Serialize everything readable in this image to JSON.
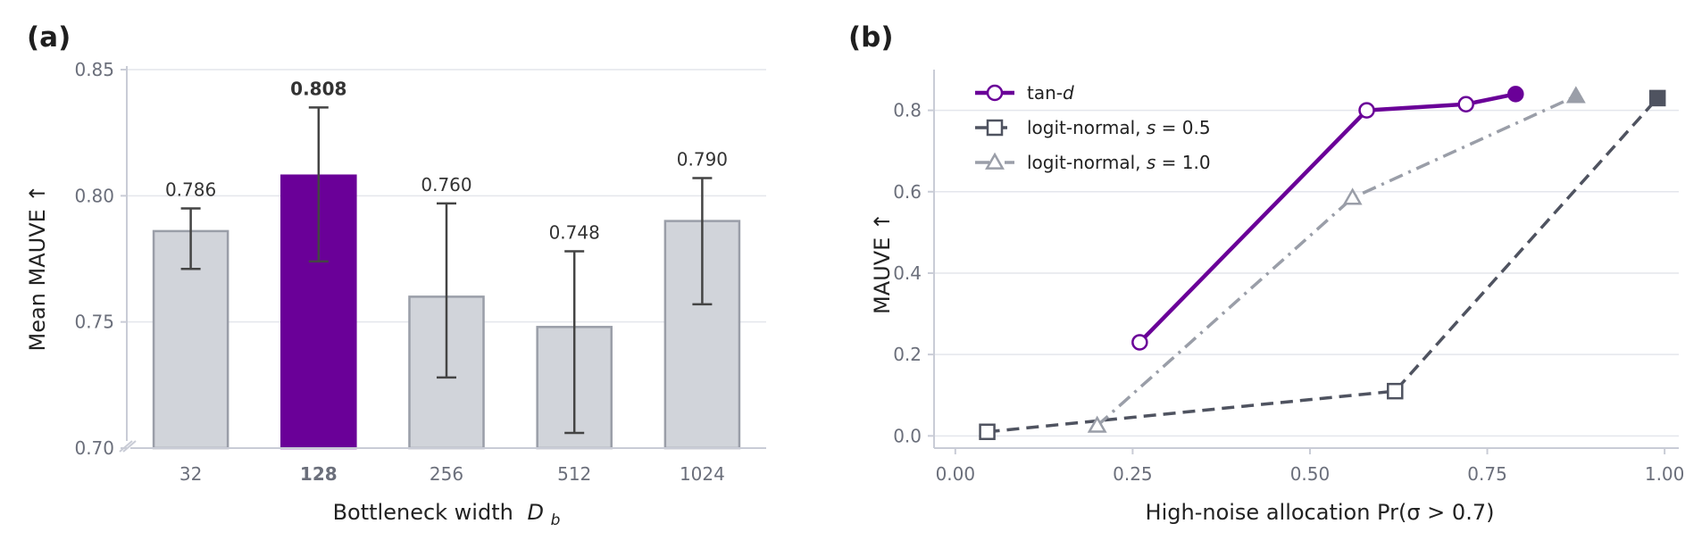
{
  "chart_data": [
    {
      "type": "bar",
      "panel_label": "(a)",
      "xlabel": "Bottleneck width",
      "xlabel_symbol": "D",
      "xlabel_subscript": "b",
      "ylabel": "Mean MAUVE  ↑",
      "ylim": [
        0.7,
        0.85
      ],
      "yticks": [
        "0.70",
        "0.75",
        "0.80",
        "0.85"
      ],
      "ytick_values": [
        0.7,
        0.75,
        0.8,
        0.85
      ],
      "categories": [
        "32",
        "128",
        "256",
        "512",
        "1024"
      ],
      "values": [
        0.786,
        0.808,
        0.76,
        0.748,
        0.79
      ],
      "value_labels": [
        "0.786",
        "0.808",
        "0.760",
        "0.748",
        "0.790"
      ],
      "error_low": [
        0.771,
        0.774,
        0.728,
        0.706,
        0.757
      ],
      "error_high": [
        0.795,
        0.835,
        0.797,
        0.778,
        0.807
      ],
      "highlight_index": 1,
      "colors": {
        "bar": "#d1d4da",
        "bar_edge": "#9a9ea8",
        "highlight": "#6a0098",
        "error": "#444444"
      },
      "axis_break": true,
      "grid": true
    },
    {
      "type": "line",
      "panel_label": "(b)",
      "xlabel": "High-noise allocation  Pr(σ > 0.7)",
      "ylabel": "MAUVE  ↑",
      "xlim": [
        -0.03,
        1.02
      ],
      "ylim": [
        -0.03,
        0.9
      ],
      "xticks": [
        "0.00",
        "0.25",
        "0.50",
        "0.75",
        "1.00"
      ],
      "xtick_values": [
        0.0,
        0.25,
        0.5,
        0.75,
        1.0
      ],
      "yticks": [
        "0.0",
        "0.2",
        "0.4",
        "0.6",
        "0.8"
      ],
      "ytick_values": [
        0.0,
        0.2,
        0.4,
        0.6,
        0.8
      ],
      "grid": true,
      "legend_position": "top-left",
      "series": [
        {
          "name": "tan-",
          "name_italic": "d",
          "color": "#6a0098",
          "dash": "solid",
          "marker": "circle",
          "x": [
            0.26,
            0.58,
            0.72,
            0.79
          ],
          "y": [
            0.23,
            0.8,
            0.815,
            0.84
          ],
          "filled_last": true
        },
        {
          "name": "logit-normal, ",
          "name_italic": "s",
          "name_suffix": " = 0.5",
          "color": "#4f5360",
          "dash": "dashed",
          "marker": "square",
          "x": [
            0.045,
            0.62,
            0.99
          ],
          "y": [
            0.01,
            0.11,
            0.83
          ],
          "filled_last": true
        },
        {
          "name": "logit-normal, ",
          "name_italic": "s",
          "name_suffix": " = 1.0",
          "color": "#9a9ea8",
          "dash": "dashdot",
          "marker": "triangle",
          "x": [
            0.2,
            0.56,
            0.875
          ],
          "y": [
            0.025,
            0.585,
            0.835
          ],
          "filled_last": true
        }
      ]
    }
  ]
}
